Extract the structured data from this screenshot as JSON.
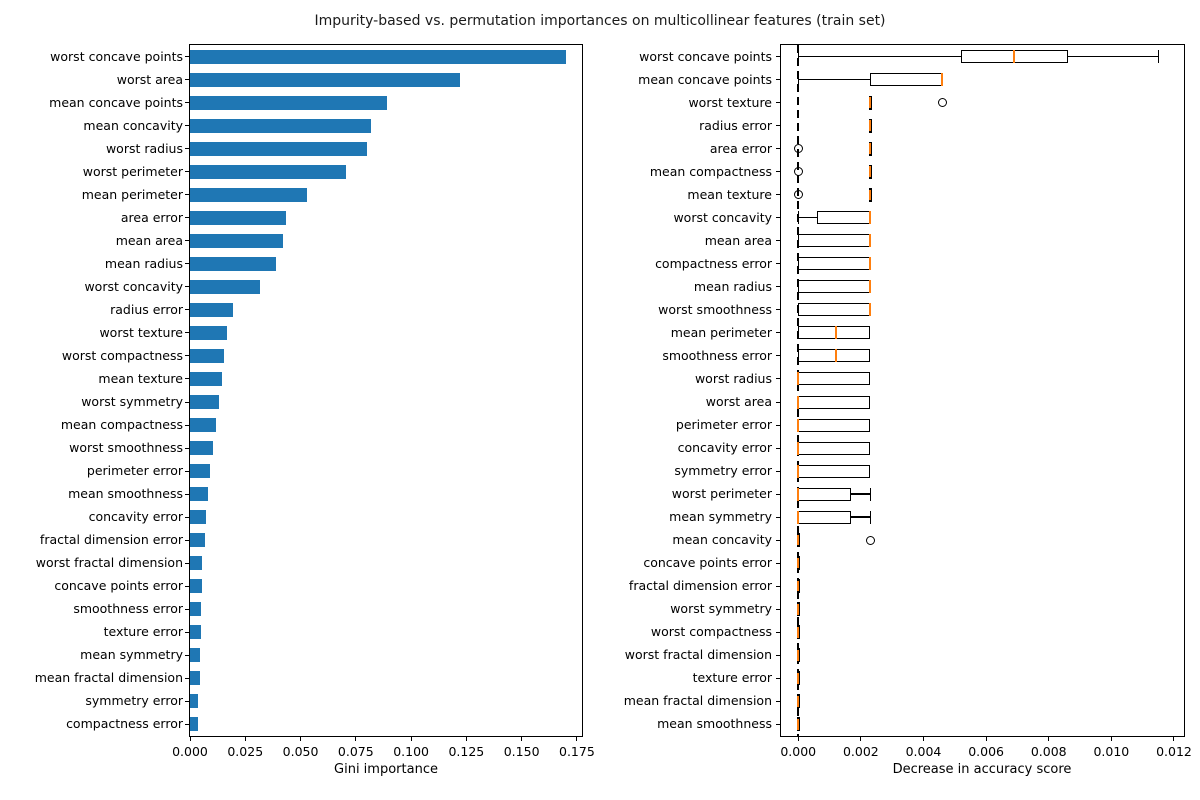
{
  "figure": {
    "title": "Impurity-based vs. permutation importances on multicollinear features (train set)"
  },
  "chart_data": [
    {
      "type": "bar",
      "orientation": "horizontal",
      "xlabel": "Gini importance",
      "bar_color": "#1f77b4",
      "xlim": [
        0,
        0.1773
      ],
      "xticks": [
        0.0,
        0.025,
        0.05,
        0.075,
        0.1,
        0.125,
        0.15,
        0.175
      ],
      "xtick_labels": [
        "0.000",
        "0.025",
        "0.050",
        "0.075",
        "0.100",
        "0.125",
        "0.150",
        "0.175"
      ],
      "categories": [
        "worst concave points",
        "worst area",
        "mean concave points",
        "mean concavity",
        "worst radius",
        "worst perimeter",
        "mean perimeter",
        "area error",
        "mean area",
        "mean radius",
        "worst concavity",
        "radius error",
        "worst texture",
        "worst compactness",
        "mean texture",
        "worst symmetry",
        "mean compactness",
        "worst smoothness",
        "perimeter error",
        "mean smoothness",
        "concavity error",
        "fractal dimension error",
        "worst fractal dimension",
        "concave points error",
        "smoothness error",
        "texture error",
        "mean symmetry",
        "mean fractal dimension",
        "symmetry error",
        "compactness error"
      ],
      "values": [
        0.17,
        0.122,
        0.089,
        0.082,
        0.08,
        0.0705,
        0.0527,
        0.0432,
        0.0421,
        0.0391,
        0.0315,
        0.0193,
        0.0166,
        0.0156,
        0.0144,
        0.013,
        0.0117,
        0.0103,
        0.009,
        0.008,
        0.0072,
        0.0066,
        0.0055,
        0.0054,
        0.005,
        0.005,
        0.0045,
        0.0044,
        0.0037,
        0.0036
      ]
    },
    {
      "type": "boxplot",
      "orientation": "horizontal",
      "xlabel": "Decrease in accuracy score",
      "median_color": "#ff7f0e",
      "zero_line": true,
      "xlim": [
        -0.00055,
        0.01232
      ],
      "xticks": [
        0.0,
        0.002,
        0.004,
        0.006,
        0.008,
        0.01,
        0.012
      ],
      "xtick_labels": [
        "0.000",
        "0.002",
        "0.004",
        "0.006",
        "0.008",
        "0.010",
        "0.012"
      ],
      "categories": [
        "worst concave points",
        "mean concave points",
        "worst texture",
        "radius error",
        "area error",
        "mean compactness",
        "mean texture",
        "worst concavity",
        "mean area",
        "compactness error",
        "mean radius",
        "worst smoothness",
        "mean perimeter",
        "smoothness error",
        "worst radius",
        "worst area",
        "perimeter error",
        "concavity error",
        "symmetry error",
        "worst perimeter",
        "mean symmetry",
        "mean concavity",
        "concave points error",
        "fractal dimension error",
        "worst symmetry",
        "worst compactness",
        "worst fractal dimension",
        "texture error",
        "mean fractal dimension",
        "mean smoothness"
      ],
      "boxes": [
        {
          "whislo": 0.0,
          "q1": 0.0052,
          "med": 0.0069,
          "q3": 0.0086,
          "whishi": 0.0115,
          "fliers": []
        },
        {
          "whislo": 0.0,
          "q1": 0.0023,
          "med": 0.0046,
          "q3": 0.0046,
          "whishi": 0.0046,
          "fliers": []
        },
        {
          "whislo": 0.0023,
          "q1": 0.0023,
          "med": 0.0023,
          "q3": 0.0023,
          "whishi": 0.0023,
          "fliers": [
            0.0046
          ]
        },
        {
          "whislo": 0.0023,
          "q1": 0.0023,
          "med": 0.0023,
          "q3": 0.0023,
          "whishi": 0.0023,
          "fliers": []
        },
        {
          "whislo": 0.0023,
          "q1": 0.0023,
          "med": 0.0023,
          "q3": 0.0023,
          "whishi": 0.0023,
          "fliers": [
            0.0
          ]
        },
        {
          "whislo": 0.0023,
          "q1": 0.0023,
          "med": 0.0023,
          "q3": 0.0023,
          "whishi": 0.0023,
          "fliers": [
            0.0
          ]
        },
        {
          "whislo": 0.0023,
          "q1": 0.0023,
          "med": 0.0023,
          "q3": 0.0023,
          "whishi": 0.0023,
          "fliers": [
            0.0
          ]
        },
        {
          "whislo": 0.0,
          "q1": 0.0006,
          "med": 0.0023,
          "q3": 0.0023,
          "whishi": 0.0023,
          "fliers": []
        },
        {
          "whislo": 0.0,
          "q1": 0.0,
          "med": 0.0023,
          "q3": 0.0023,
          "whishi": 0.0023,
          "fliers": []
        },
        {
          "whislo": 0.0,
          "q1": 0.0,
          "med": 0.0023,
          "q3": 0.0023,
          "whishi": 0.0023,
          "fliers": []
        },
        {
          "whislo": 0.0,
          "q1": 0.0,
          "med": 0.0023,
          "q3": 0.0023,
          "whishi": 0.0023,
          "fliers": []
        },
        {
          "whislo": 0.0,
          "q1": 0.0,
          "med": 0.0023,
          "q3": 0.0023,
          "whishi": 0.0023,
          "fliers": []
        },
        {
          "whislo": 0.0,
          "q1": 0.0,
          "med": 0.0012,
          "q3": 0.0023,
          "whishi": 0.0023,
          "fliers": []
        },
        {
          "whislo": 0.0,
          "q1": 0.0,
          "med": 0.0012,
          "q3": 0.0023,
          "whishi": 0.0023,
          "fliers": []
        },
        {
          "whislo": 0.0,
          "q1": 0.0,
          "med": 0.0,
          "q3": 0.0023,
          "whishi": 0.0023,
          "fliers": []
        },
        {
          "whislo": 0.0,
          "q1": 0.0,
          "med": 0.0,
          "q3": 0.0023,
          "whishi": 0.0023,
          "fliers": []
        },
        {
          "whislo": 0.0,
          "q1": 0.0,
          "med": 0.0,
          "q3": 0.0023,
          "whishi": 0.0023,
          "fliers": []
        },
        {
          "whislo": 0.0,
          "q1": 0.0,
          "med": 0.0,
          "q3": 0.0023,
          "whishi": 0.0023,
          "fliers": []
        },
        {
          "whislo": 0.0,
          "q1": 0.0,
          "med": 0.0,
          "q3": 0.0023,
          "whishi": 0.0023,
          "fliers": []
        },
        {
          "whislo": 0.0,
          "q1": 0.0,
          "med": 0.0,
          "q3": 0.0017,
          "whishi": 0.0023,
          "fliers": []
        },
        {
          "whislo": 0.0,
          "q1": 0.0,
          "med": 0.0,
          "q3": 0.0017,
          "whishi": 0.0023,
          "fliers": []
        },
        {
          "whislo": 0.0,
          "q1": 0.0,
          "med": 0.0,
          "q3": 0.0,
          "whishi": 0.0,
          "fliers": [
            0.0023
          ]
        },
        {
          "whislo": 0.0,
          "q1": 0.0,
          "med": 0.0,
          "q3": 0.0,
          "whishi": 0.0,
          "fliers": []
        },
        {
          "whislo": 0.0,
          "q1": 0.0,
          "med": 0.0,
          "q3": 0.0,
          "whishi": 0.0,
          "fliers": []
        },
        {
          "whislo": 0.0,
          "q1": 0.0,
          "med": 0.0,
          "q3": 0.0,
          "whishi": 0.0,
          "fliers": []
        },
        {
          "whislo": 0.0,
          "q1": 0.0,
          "med": 0.0,
          "q3": 0.0,
          "whishi": 0.0,
          "fliers": []
        },
        {
          "whislo": 0.0,
          "q1": 0.0,
          "med": 0.0,
          "q3": 0.0,
          "whishi": 0.0,
          "fliers": []
        },
        {
          "whislo": 0.0,
          "q1": 0.0,
          "med": 0.0,
          "q3": 0.0,
          "whishi": 0.0,
          "fliers": []
        },
        {
          "whislo": 0.0,
          "q1": 0.0,
          "med": 0.0,
          "q3": 0.0,
          "whishi": 0.0,
          "fliers": []
        },
        {
          "whislo": 0.0,
          "q1": 0.0,
          "med": 0.0,
          "q3": 0.0,
          "whishi": 0.0,
          "fliers": []
        }
      ]
    }
  ]
}
